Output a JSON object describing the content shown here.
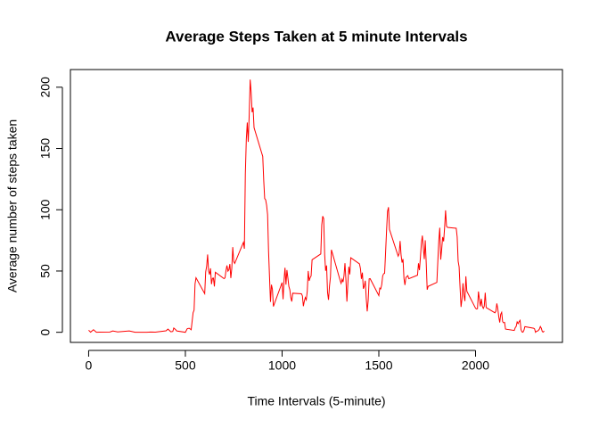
{
  "chart_data": {
    "type": "line",
    "title": "Average Steps Taken at 5 minute Intervals",
    "x_label": "Time Intervals (5-minute)",
    "y_label": "Average number of steps taken",
    "color": "#ff0000",
    "xlim": [
      -94.2,
      2449.2
    ],
    "xticks": [
      0,
      500,
      1000,
      1500,
      2000
    ],
    "ylim": [
      -8.25,
      214.42
    ],
    "yticks": [
      0,
      50,
      100,
      150,
      200
    ],
    "x": [
      0,
      10,
      25,
      40,
      55,
      110,
      125,
      150,
      210,
      240,
      300,
      320,
      345,
      400,
      410,
      425,
      435,
      440,
      450,
      455,
      500,
      510,
      520,
      530,
      540,
      545,
      550,
      555,
      600,
      605,
      610,
      615,
      620,
      625,
      630,
      635,
      640,
      645,
      650,
      655,
      700,
      705,
      710,
      715,
      720,
      725,
      730,
      735,
      740,
      745,
      750,
      755,
      800,
      805,
      810,
      815,
      820,
      825,
      830,
      835,
      840,
      845,
      850,
      855,
      900,
      905,
      910,
      915,
      920,
      925,
      930,
      935,
      940,
      945,
      950,
      955,
      1000,
      1005,
      1010,
      1015,
      1020,
      1025,
      1030,
      1035,
      1040,
      1045,
      1050,
      1055,
      1100,
      1105,
      1110,
      1115,
      1120,
      1125,
      1130,
      1135,
      1140,
      1145,
      1150,
      1155,
      1200,
      1205,
      1210,
      1215,
      1220,
      1225,
      1230,
      1235,
      1240,
      1245,
      1250,
      1255,
      1300,
      1305,
      1310,
      1315,
      1320,
      1325,
      1330,
      1335,
      1340,
      1345,
      1350,
      1355,
      1400,
      1405,
      1410,
      1415,
      1420,
      1425,
      1430,
      1435,
      1440,
      1445,
      1450,
      1455,
      1500,
      1505,
      1510,
      1515,
      1520,
      1525,
      1530,
      1535,
      1540,
      1545,
      1550,
      1555,
      1600,
      1605,
      1610,
      1615,
      1620,
      1625,
      1630,
      1635,
      1640,
      1645,
      1650,
      1655,
      1700,
      1705,
      1710,
      1715,
      1720,
      1725,
      1730,
      1735,
      1740,
      1745,
      1750,
      1755,
      1800,
      1805,
      1810,
      1815,
      1820,
      1825,
      1830,
      1835,
      1840,
      1845,
      1850,
      1855,
      1900,
      1905,
      1910,
      1915,
      1920,
      1925,
      1930,
      1935,
      1940,
      1945,
      1950,
      1955,
      2000,
      2005,
      2010,
      2015,
      2020,
      2025,
      2030,
      2035,
      2040,
      2045,
      2050,
      2055,
      2100,
      2105,
      2110,
      2115,
      2120,
      2125,
      2130,
      2135,
      2140,
      2145,
      2150,
      2155,
      2200,
      2205,
      2210,
      2215,
      2220,
      2225,
      2230,
      2235,
      2240,
      2245,
      2250,
      2255,
      2300,
      2305,
      2310,
      2315,
      2320,
      2325,
      2330,
      2335,
      2340,
      2345,
      2350,
      2355
    ],
    "values": [
      1.7,
      0.1,
      2.1,
      0,
      0.1,
      0.2,
      1.1,
      0.3,
      1.1,
      0,
      0,
      0.2,
      0.1,
      1.2,
      2.6,
      0.4,
      0.7,
      3.5,
      2.1,
      1.1,
      0,
      3,
      3.3,
      2.1,
      16,
      18,
      39.5,
      44.5,
      31.5,
      49.3,
      53.8,
      63.5,
      50,
      47.1,
      52.2,
      39.3,
      44,
      44.2,
      37.4,
      49,
      43.8,
      44.4,
      50.5,
      54.5,
      49.9,
      51,
      55.7,
      44.3,
      52.3,
      69.5,
      57.8,
      56.2,
      73.4,
      68.2,
      129.4,
      157.5,
      171.2,
      155.4,
      177.3,
      206.2,
      195.9,
      179.6,
      183.4,
      167,
      143.5,
      124,
      109.1,
      108.1,
      103.7,
      96,
      66.2,
      45.2,
      24.8,
      38.8,
      35,
      21.1,
      40.6,
      27,
      42.4,
      52.7,
      38.9,
      50.8,
      44.3,
      37.4,
      34.7,
      28.3,
      25.1,
      31.9,
      31.4,
      29.7,
      21.3,
      25.5,
      28.4,
      26.5,
      33.4,
      50,
      42,
      44.6,
      46,
      59.2,
      63.9,
      87.7,
      94.8,
      92.8,
      63.4,
      50.2,
      54.5,
      32.4,
      26.5,
      37.7,
      45.1,
      67.3,
      42.3,
      39.9,
      43.3,
      41,
      46.2,
      56.4,
      42.8,
      25.1,
      40,
      53.5,
      47.3,
      60.8,
      55.8,
      52,
      43.6,
      48.7,
      35.5,
      37.6,
      42.1,
      27.5,
      17.1,
      26.1,
      43.6,
      43.8,
      30,
      36.1,
      35.5,
      38.8,
      46,
      47.8,
      48.1,
      65.3,
      82.9,
      98.7,
      102.1,
      84,
      62.1,
      64.1,
      74.5,
      63.2,
      56.9,
      59.8,
      43.9,
      38.6,
      44.7,
      45.5,
      46.2,
      43.7,
      46.6,
      56.3,
      50.7,
      61.2,
      72.7,
      78.9,
      68.9,
      59.7,
      75.1,
      56.5,
      34.8,
      37.5,
      40.7,
      58,
      74.7,
      85.3,
      59.3,
      67.8,
      77.7,
      74.2,
      85.3,
      99.5,
      86.6,
      85.6,
      84.9,
      77.8,
      58,
      53.4,
      36.3,
      20.7,
      27.4,
      40,
      30.2,
      25.5,
      45.7,
      33.5,
      19.6,
      19,
      19.3,
      33.3,
      26.8,
      21.2,
      27.3,
      21.3,
      19.5,
      21.3,
      32.3,
      20.2,
      15.9,
      17.2,
      23.5,
      19.2,
      12.5,
      8,
      14.7,
      16.3,
      8.7,
      7.8,
      8.1,
      2.6,
      1.5,
      3.7,
      4.8,
      8.5,
      7.1,
      8.7,
      9.8,
      2.2,
      0.3,
      0.1,
      1.6,
      4.6,
      3.3,
      2.8,
      0,
      0.8,
      1,
      1.6,
      2.6,
      4.7,
      3.3,
      0.6,
      0.2,
      1.1
    ]
  }
}
